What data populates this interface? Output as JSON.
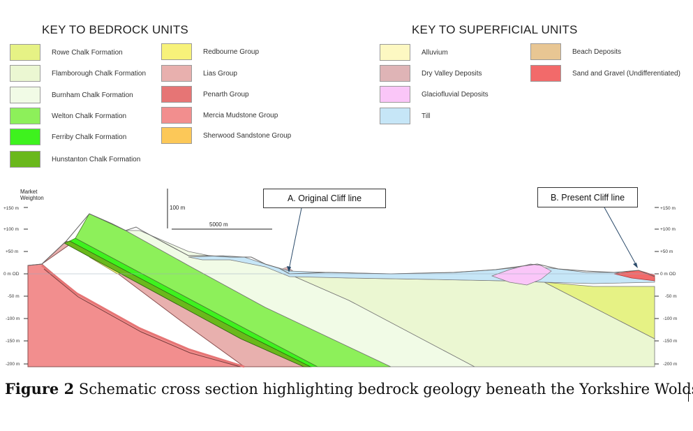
{
  "bedrock_key": {
    "title": "KEY TO BEDROCK UNITS",
    "items": [
      {
        "label": "Rowe Chalk Formation",
        "color": "#e6f285"
      },
      {
        "label": "Flamborough Chalk Formation",
        "color": "#ebf7d2"
      },
      {
        "label": "Burnham Chalk Formation",
        "color": "#f1fbe6"
      },
      {
        "label": "Welton Chalk Formation",
        "color": "#8df05a"
      },
      {
        "label": "Ferriby Chalk Formation",
        "color": "#3ef21e"
      },
      {
        "label": "Hunstanton Chalk Formation",
        "color": "#6ab81c"
      },
      {
        "label": "Redbourne Group",
        "color": "#f7f27a"
      },
      {
        "label": "Lias Group",
        "color": "#e8b0ae"
      },
      {
        "label": "Penarth Group",
        "color": "#e67575"
      },
      {
        "label": "Mercia Mudstone Group",
        "color": "#f28e8e"
      },
      {
        "label": "Sherwood Sandstone Group",
        "color": "#fcc858"
      }
    ]
  },
  "superficial_key": {
    "title": "KEY TO SUPERFICIAL UNITS",
    "items": [
      {
        "label": "Alluvium",
        "color": "#fdf8c2"
      },
      {
        "label": "Dry Valley Deposits",
        "color": "#dfb4b6"
      },
      {
        "label": "Glaciofluvial Deposits",
        "color": "#fac6f8"
      },
      {
        "label": "Till",
        "color": "#c6e6f7"
      },
      {
        "label": "Beach Deposits",
        "color": "#e8c693"
      },
      {
        "label": "Sand and Gravel (Undifferentiated)",
        "color": "#f26a6a"
      }
    ]
  },
  "section": {
    "place_label": [
      "Market",
      "Weighton"
    ],
    "scale_vertical": "100 m",
    "scale_horizontal": "5000 m",
    "left_axis": [
      "+150 m",
      "+100 m",
      "+50 m",
      "0 m OD",
      "-50 m",
      "-100 m",
      "-150 m",
      "-200 m"
    ],
    "right_axis": [
      "+150 m",
      "+100 m",
      "+50 m",
      "0 m OD",
      "-50 m",
      "-100 m",
      "-150 m",
      "-200 m"
    ]
  },
  "callouts": {
    "a": "A.   Original Cliff line",
    "b": "B. Present Cliff line"
  },
  "caption": {
    "figure": "Figure 2",
    "text": " Schematic cross section highlighting bedrock geology beneath the Yorkshire Wolds"
  }
}
